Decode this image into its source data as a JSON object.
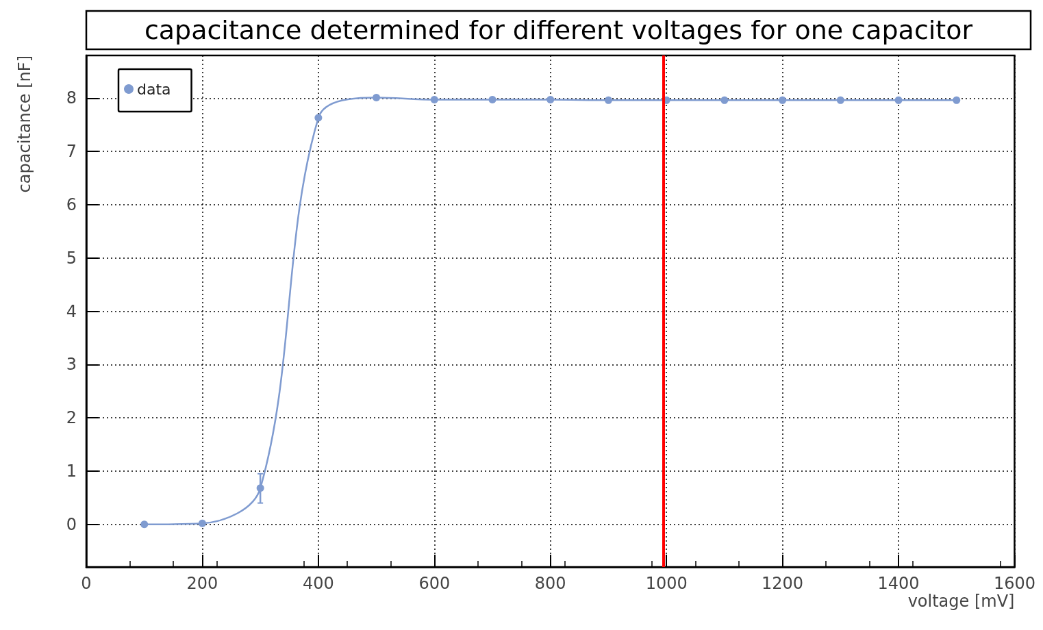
{
  "chart_data": {
    "type": "line",
    "title": "capacitance determined for different voltages for one capacitor",
    "xlabel": "voltage [mV]",
    "ylabel": "capacitance [nF]",
    "x": [
      100,
      200,
      300,
      400,
      500,
      600,
      700,
      800,
      900,
      1000,
      1100,
      1200,
      1300,
      1400,
      1500
    ],
    "series": [
      {
        "name": "data",
        "color": "#7f9bd0",
        "values": [
          0,
          0.02,
          0.68,
          7.63,
          8.01,
          7.97,
          7.97,
          7.97,
          7.96,
          7.96,
          7.96,
          7.96,
          7.96,
          7.96,
          7.96
        ],
        "errors": [
          null,
          null,
          [
            0.4,
            0.95
          ],
          null,
          null,
          null,
          null,
          null,
          null,
          null,
          null,
          null,
          null,
          null,
          null
        ]
      }
    ],
    "xlim": [
      0,
      1600
    ],
    "xticks": [
      0,
      200,
      400,
      600,
      800,
      1000,
      1200,
      1400,
      1600
    ],
    "ylim": [
      -0.8,
      8.8
    ],
    "yticks": [
      0,
      1,
      2,
      3,
      4,
      5,
      6,
      7,
      8
    ],
    "ref_lines": [
      {
        "axis": "x",
        "value": 995,
        "color": "#ff0000"
      }
    ],
    "grid": true,
    "legend": "top left",
    "marker": "circle",
    "line_style": "solid"
  }
}
